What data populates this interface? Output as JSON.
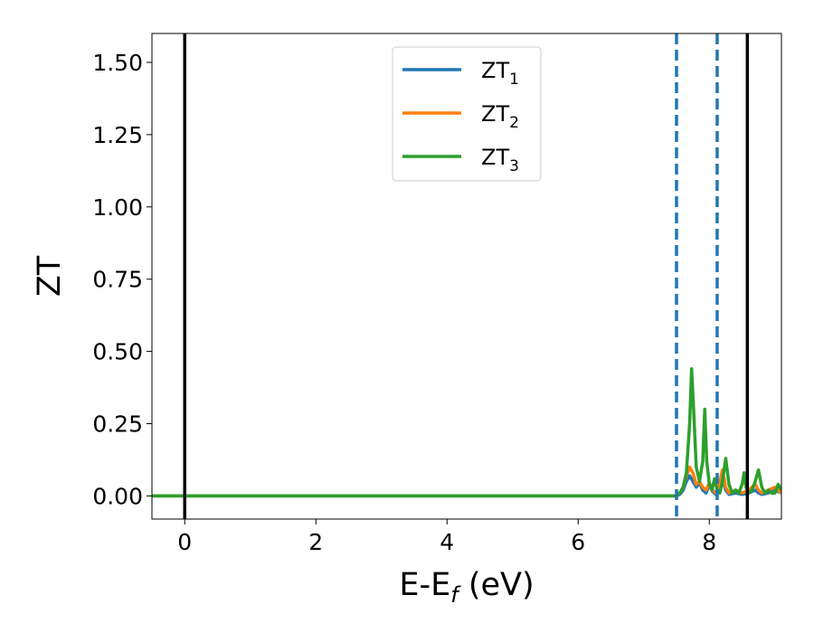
{
  "chart_data": {
    "type": "line",
    "xlabel": {
      "main": "E-E",
      "sub": "f",
      "rest": " (eV)"
    },
    "ylabel": "ZT",
    "xlim": [
      -0.5,
      9.1
    ],
    "ylim": [
      -0.08,
      1.6
    ],
    "xticks": [
      0,
      2,
      4,
      6,
      8
    ],
    "xtick_labels": [
      "0",
      "2",
      "4",
      "6",
      "8"
    ],
    "yticks": [
      0.0,
      0.25,
      0.5,
      0.75,
      1.0,
      1.25,
      1.5
    ],
    "ytick_labels": [
      "0.00",
      "0.25",
      "0.50",
      "0.75",
      "1.00",
      "1.25",
      "1.50"
    ],
    "grid": false,
    "legend_position": "upper-center",
    "series": [
      {
        "name": "ZT",
        "sub": "1",
        "color": "#1f77b4",
        "x": [
          -0.5,
          7.5,
          7.55,
          7.6,
          7.65,
          7.7,
          7.75,
          7.8,
          7.85,
          7.9,
          7.95,
          8.0,
          8.05,
          8.1,
          8.15,
          8.2,
          8.25,
          8.3,
          8.4,
          8.5,
          8.6,
          8.7,
          8.75,
          8.8,
          8.9,
          9.0,
          9.1
        ],
        "y": [
          0,
          0,
          0.005,
          0.02,
          0.05,
          0.07,
          0.05,
          0.03,
          0.045,
          0.02,
          0.01,
          0.04,
          0.015,
          0.005,
          0.03,
          0.06,
          0.02,
          0.005,
          0.01,
          0.005,
          0.01,
          0.02,
          0.01,
          0.005,
          0.01,
          0.02,
          0.01
        ]
      },
      {
        "name": "ZT",
        "sub": "2",
        "color": "#ff7f0e",
        "x": [
          -0.5,
          7.5,
          7.55,
          7.6,
          7.65,
          7.7,
          7.75,
          7.8,
          7.85,
          7.9,
          7.95,
          8.0,
          8.05,
          8.1,
          8.15,
          8.2,
          8.25,
          8.3,
          8.4,
          8.5,
          8.6,
          8.7,
          8.75,
          8.8,
          8.9,
          9.0,
          9.1
        ],
        "y": [
          0,
          0,
          0.01,
          0.03,
          0.07,
          0.1,
          0.08,
          0.04,
          0.05,
          0.03,
          0.02,
          0.045,
          0.02,
          0.01,
          0.04,
          0.09,
          0.03,
          0.01,
          0.02,
          0.01,
          0.02,
          0.04,
          0.02,
          0.01,
          0.02,
          0.03,
          0.01
        ]
      },
      {
        "name": "ZT",
        "sub": "3",
        "color": "#2ca02c",
        "x": [
          -0.5,
          7.5,
          7.55,
          7.6,
          7.65,
          7.7,
          7.73,
          7.76,
          7.8,
          7.85,
          7.9,
          7.93,
          7.96,
          8.0,
          8.04,
          8.08,
          8.12,
          8.16,
          8.2,
          8.25,
          8.3,
          8.35,
          8.4,
          8.45,
          8.5,
          8.53,
          8.56,
          8.6,
          8.65,
          8.7,
          8.75,
          8.8,
          8.85,
          8.9,
          8.95,
          9.0,
          9.05,
          9.1
        ],
        "y": [
          0,
          0,
          0.01,
          0.03,
          0.08,
          0.25,
          0.44,
          0.3,
          0.1,
          0.05,
          0.12,
          0.3,
          0.12,
          0.04,
          0.02,
          0.06,
          0.02,
          0.01,
          0.05,
          0.13,
          0.04,
          0.01,
          0.02,
          0.01,
          0.04,
          0.08,
          0.03,
          0.01,
          0.02,
          0.05,
          0.09,
          0.03,
          0.01,
          0.02,
          0.01,
          0.01,
          0.04,
          0.02
        ]
      }
    ],
    "vlines": [
      {
        "x": 0,
        "style": "solid",
        "color": "#000000"
      },
      {
        "x": 8.58,
        "style": "solid",
        "color": "#000000"
      },
      {
        "x": 7.5,
        "style": "dashed",
        "color": "#1f77b4"
      },
      {
        "x": 8.12,
        "style": "dashed",
        "color": "#1f77b4"
      }
    ]
  }
}
